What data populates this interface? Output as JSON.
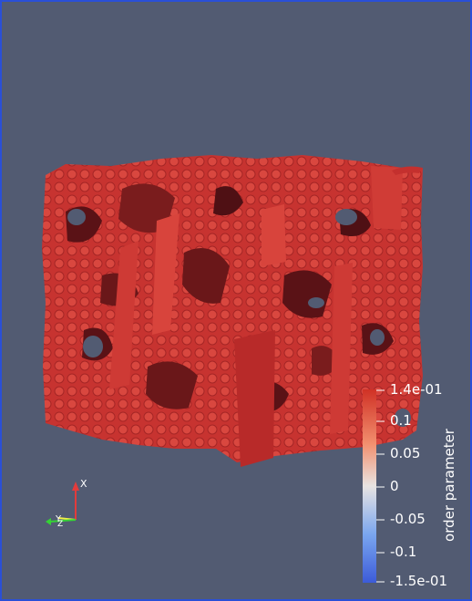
{
  "viewport": {
    "background": "#525b72",
    "border_color": "#2a4fd6"
  },
  "render": {
    "surface_color": "#c4302e",
    "shadow_color": "#5a1216",
    "highlight_color": "#df4a42"
  },
  "axes_triad": {
    "x_label": "X",
    "y_label": "Y",
    "z_label": "Z",
    "x_color": "#e33b3b",
    "y_color": "#f2f246",
    "z_color": "#35d335"
  },
  "colorbar": {
    "title": "order parameter",
    "tick_labels": [
      "1.4e-01",
      "0.1",
      "0.05",
      "0",
      "-0.05",
      "-0.1",
      "-1.5e-01"
    ],
    "max": 0.14,
    "min": -0.15,
    "colors_top_to_bottom": [
      "#d03125",
      "#f28f6e",
      "#e8e4e2",
      "#7aa6ef",
      "#3c5bd8"
    ]
  }
}
